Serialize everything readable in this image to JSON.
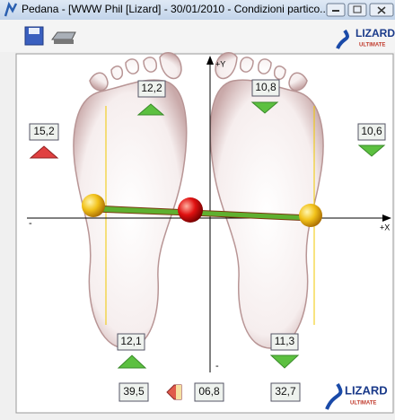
{
  "window": {
    "title": "Pedana - [WWW Phil [Lizard] - 30/01/2010 - Condizioni partico...",
    "logo": {
      "name": "LIZARD",
      "edition": "ULTIMATE"
    }
  },
  "axes": {
    "y_positive": "+Y",
    "y_negative": "-",
    "x_positive": "+X",
    "x_negative": "-"
  },
  "readings": {
    "left_toe": "12,2",
    "right_toe": "10,8",
    "left_outer": "15,2",
    "right_outer": "10,6",
    "left_heel": "12,1",
    "right_heel": "11,3"
  },
  "totals": {
    "left": "39,5",
    "offset": "06,8",
    "right": "32,7"
  }
}
